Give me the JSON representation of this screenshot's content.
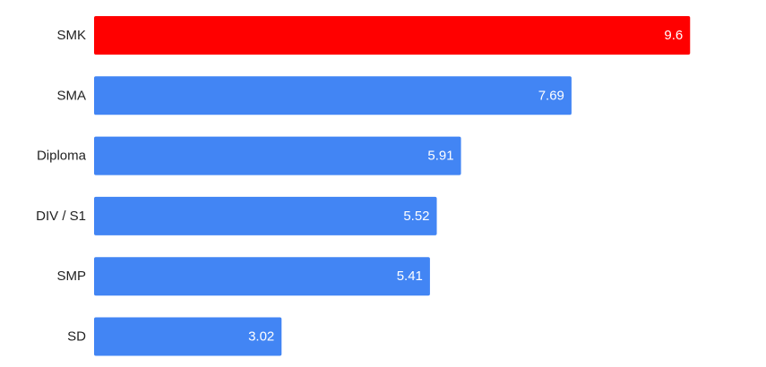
{
  "chart_data": {
    "type": "bar",
    "orientation": "horizontal",
    "categories": [
      "SMK",
      "SMA",
      "Diploma",
      "DIV / S1",
      "SMP",
      "SD"
    ],
    "values": [
      9.6,
      7.69,
      5.91,
      5.52,
      5.41,
      3.02
    ],
    "value_labels": [
      "9.6",
      "7.69",
      "5.91",
      "5.52",
      "5.41",
      "3.02"
    ],
    "xlim": [
      0,
      10
    ],
    "grid": false,
    "highlight_index": 0,
    "colors": {
      "highlight": "#ff0000",
      "default": "#4285f4"
    }
  }
}
